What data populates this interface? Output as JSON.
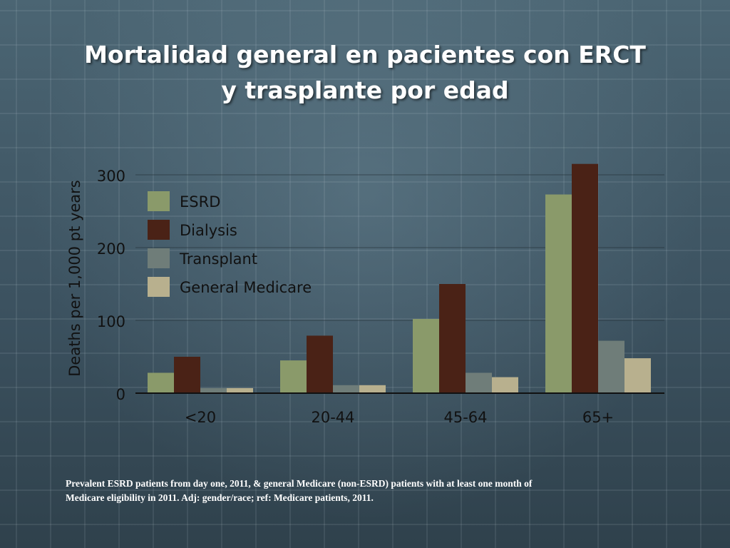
{
  "title": {
    "line1": "Mortalidad general en pacientes con ERCT",
    "line2": "y trasplante por edad"
  },
  "chart_data": {
    "type": "bar",
    "categories": [
      "<20",
      "20-44",
      "45-64",
      "65+"
    ],
    "series": [
      {
        "name": "ESRD",
        "color": "#8a9a6a",
        "values": [
          28,
          45,
          102,
          273
        ]
      },
      {
        "name": "Dialysis",
        "color": "#4a2216",
        "values": [
          50,
          79,
          150,
          315
        ]
      },
      {
        "name": "Transplant",
        "color": "#6f7d79",
        "values": [
          7,
          11,
          28,
          72
        ]
      },
      {
        "name": "General Medicare",
        "color": "#b8b08e",
        "values": [
          7,
          11,
          22,
          48
        ]
      }
    ],
    "ylabel": "Deaths per 1,000 pt years",
    "ylim": [
      0,
      300
    ],
    "yticks": [
      0,
      100,
      200,
      300
    ],
    "grid": true,
    "legend": "top-left"
  },
  "caption": {
    "line1": "Prevalent ESRD patients from day one, 2011, & general Medicare (non-ESRD) patients with at least one month of",
    "line2": "Medicare eligibility in 2011. Adj: gender/race; ref: Medicare patients, 2011."
  }
}
